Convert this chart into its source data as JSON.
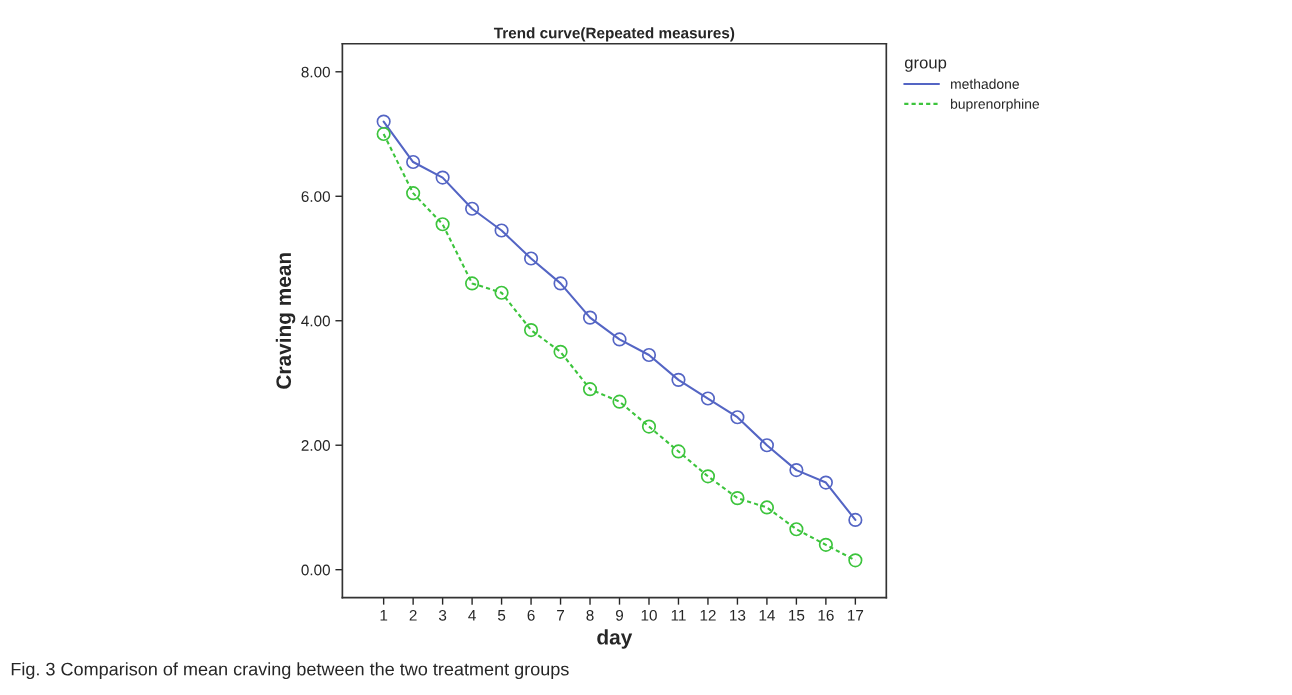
{
  "chart_data": {
    "type": "line",
    "title": "Trend curve(Repeated measures)",
    "xlabel": "day",
    "ylabel": "Craving mean",
    "legend_title": "group",
    "categories": [
      "1",
      "2",
      "3",
      "4",
      "5",
      "6",
      "7",
      "8",
      "9",
      "10",
      "11",
      "12",
      "13",
      "14",
      "15",
      "16",
      "17"
    ],
    "series": [
      {
        "name": "methadone",
        "color": "#5465c4",
        "line_style": "solid",
        "values": [
          7.2,
          6.55,
          6.3,
          5.8,
          5.45,
          5.0,
          4.6,
          4.05,
          3.7,
          3.45,
          3.05,
          2.75,
          2.45,
          2.0,
          1.6,
          1.4,
          0.8
        ]
      },
      {
        "name": "buprenorphine",
        "color": "#3cc43c",
        "line_style": "dashed",
        "values": [
          7.0,
          6.05,
          5.55,
          4.6,
          4.45,
          3.85,
          3.5,
          2.9,
          2.7,
          2.3,
          1.9,
          1.5,
          1.15,
          1.0,
          0.65,
          0.4,
          0.15
        ]
      }
    ],
    "ylim": [
      -0.45,
      8.45
    ],
    "yticks": [
      {
        "value": 0,
        "label": "0.00"
      },
      {
        "value": 2,
        "label": "2.00"
      },
      {
        "value": 4,
        "label": "4.00"
      },
      {
        "value": 6,
        "label": "6.00"
      },
      {
        "value": 8,
        "label": "8.00"
      }
    ],
    "marker": "circle",
    "grid": false,
    "legend": "top right",
    "annotations": [
      "Fig. 3 Comparison of mean craving between the two treatment groups"
    ]
  }
}
